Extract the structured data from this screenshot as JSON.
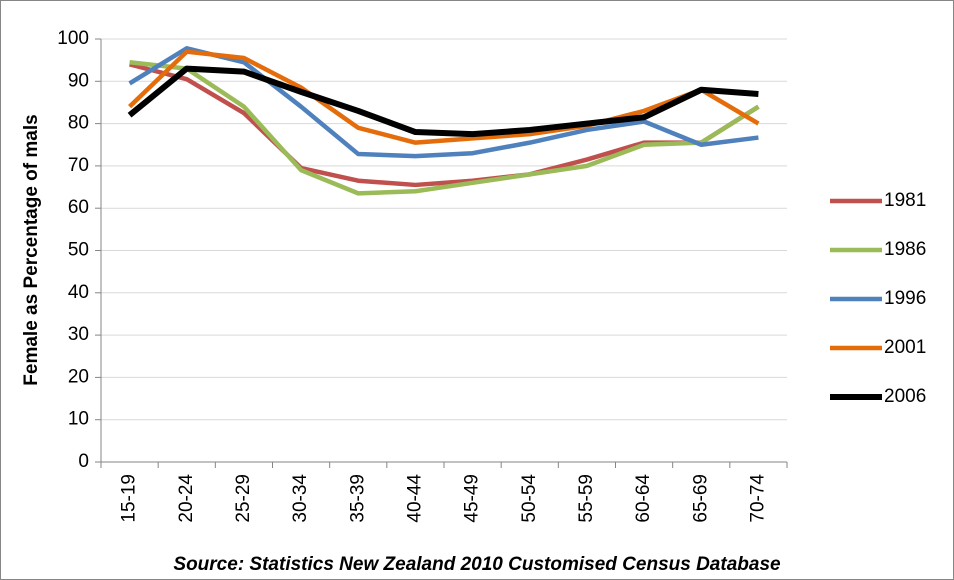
{
  "chart_data": {
    "type": "line",
    "y_label": "Female as Percentage of mals",
    "source": "Source: Statistics New Zealand 2010 Customised Census Database",
    "categories": [
      "15-19",
      "20-24",
      "25-29",
      "30-34",
      "35-39",
      "40-44",
      "45-49",
      "50-54",
      "55-59",
      "60-64",
      "65-69",
      "70-74"
    ],
    "ylim": [
      0,
      100
    ],
    "yticks": [
      0,
      10,
      20,
      30,
      40,
      50,
      60,
      70,
      80,
      90,
      100
    ],
    "grid": true,
    "legend": "right",
    "series": [
      {
        "name": "1981",
        "color": "#c0504d",
        "values": [
          94,
          90.5,
          82.5,
          69.5,
          66.5,
          65.5,
          66.5,
          68,
          71.5,
          75.5,
          75.5,
          84
        ]
      },
      {
        "name": "1986",
        "color": "#9bbb59",
        "values": [
          94.5,
          93,
          84,
          69,
          63.5,
          64,
          66,
          68,
          70,
          75,
          75.5,
          84
        ]
      },
      {
        "name": "1996",
        "color": "#4f81bd",
        "values": [
          89.5,
          97.8,
          94.5,
          84,
          72.8,
          72.3,
          73,
          75.5,
          78.5,
          80.5,
          75,
          76.7
        ]
      },
      {
        "name": "2001",
        "color": "#e46c0a",
        "values": [
          84,
          97,
          95.5,
          88.5,
          79,
          75.5,
          76.5,
          77.5,
          79.5,
          83,
          88,
          80
        ]
      },
      {
        "name": "2006",
        "color": "#000000",
        "values": [
          82,
          93,
          92.3,
          87.5,
          83,
          78,
          77.5,
          78.5,
          80,
          81.5,
          88,
          87
        ]
      }
    ]
  }
}
